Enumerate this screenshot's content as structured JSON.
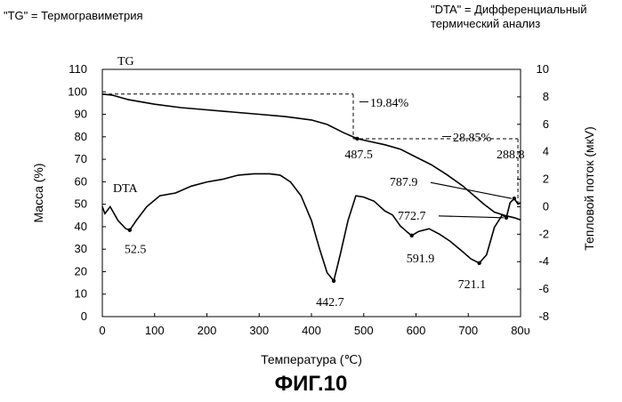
{
  "notes": {
    "tg": "\"TG\" = Термогравиметрия",
    "dta_line1": "\"DTA\" = Дифференциальный",
    "dta_line2": "термический анализ"
  },
  "caption": "ФИГ.10",
  "chart_data": {
    "type": "line",
    "title": "",
    "xlabel": "Температура (℃)",
    "ylabel_left": "Масса (%)",
    "ylabel_right": "Тепловой поток (мкV)",
    "xlim": [
      0,
      800
    ],
    "ylim_left": [
      0,
      110
    ],
    "ylim_right": [
      -8,
      10
    ],
    "x_ticks": [
      "0",
      "100",
      "200",
      "300",
      "400",
      "500",
      "600",
      "700",
      "80υ"
    ],
    "y_left_ticks": [
      "0",
      "10",
      "20",
      "30",
      "40",
      "50",
      "60",
      "70",
      "80",
      "90",
      "100",
      "110"
    ],
    "y_right_ticks": [
      "-8",
      "-6",
      "-4",
      "-2",
      "0",
      "2",
      "4",
      "6",
      "8",
      "10"
    ],
    "grid": false,
    "series": [
      {
        "name": "TG",
        "axis": "left",
        "x": [
          0,
          20,
          50,
          100,
          150,
          200,
          250,
          300,
          350,
          400,
          430,
          460,
          487.5,
          510,
          540,
          570,
          600,
          630,
          660,
          690,
          710,
          730,
          750,
          770,
          787.9,
          800
        ],
        "y": [
          99,
          98.5,
          96.5,
          94.5,
          93,
          92,
          91,
          90,
          89,
          87.5,
          85.5,
          82,
          79.16,
          78,
          76.5,
          74.5,
          71,
          67.5,
          63,
          58,
          54,
          50,
          46.5,
          45,
          44,
          43
        ]
      },
      {
        "name": "DTA",
        "axis": "right",
        "x": [
          0,
          5,
          15,
          30,
          45,
          52.5,
          65,
          85,
          110,
          140,
          170,
          200,
          230,
          260,
          290,
          320,
          340,
          360,
          380,
          400,
          415,
          430,
          442.7,
          455,
          470,
          485,
          500,
          520,
          540,
          555,
          570,
          585,
          591.9,
          605,
          625,
          645,
          665,
          690,
          705,
          721.1,
          735,
          750,
          765,
          772.7,
          780,
          787.9,
          795,
          800
        ],
        "y": [
          0,
          -0.5,
          0,
          -1,
          -1.6,
          -1.7,
          -1,
          0,
          0.8,
          1,
          1.5,
          1.8,
          2,
          2.3,
          2.4,
          2.4,
          2.3,
          1.8,
          0.8,
          -1,
          -3,
          -4.8,
          -5.4,
          -3.5,
          -1,
          0.8,
          0.7,
          0.4,
          -0.3,
          -0.6,
          -1.4,
          -1.9,
          -2.1,
          -1.8,
          -1.6,
          -2,
          -2.5,
          -3.3,
          -3.8,
          -4.1,
          -3.5,
          -1.5,
          -0.6,
          -0.8,
          0.3,
          0.6,
          0.2,
          0.3
        ]
      }
    ],
    "tg_steps": [
      {
        "x": [
          0,
          480
        ],
        "y": 99,
        "label": "－19.84%"
      },
      {
        "x": [
          480,
          795
        ],
        "y": 79.16,
        "label": "－28.85%"
      },
      {
        "x": [
          795,
          800
        ],
        "y": 50.3,
        "label": "288.8"
      }
    ],
    "annotations": [
      {
        "series": "TG",
        "x": 487.5,
        "label": "487.5"
      },
      {
        "series": "DTA",
        "x": 52.5,
        "label": "52.5"
      },
      {
        "series": "DTA",
        "x": 442.7,
        "label": "442.7"
      },
      {
        "series": "DTA",
        "x": 591.9,
        "label": "591.9"
      },
      {
        "series": "DTA",
        "x": 721.1,
        "label": "721.1"
      },
      {
        "series": "DTA",
        "x": 772.7,
        "label": "772.7"
      },
      {
        "series": "DTA",
        "x": 787.9,
        "label": "787.9"
      }
    ]
  }
}
